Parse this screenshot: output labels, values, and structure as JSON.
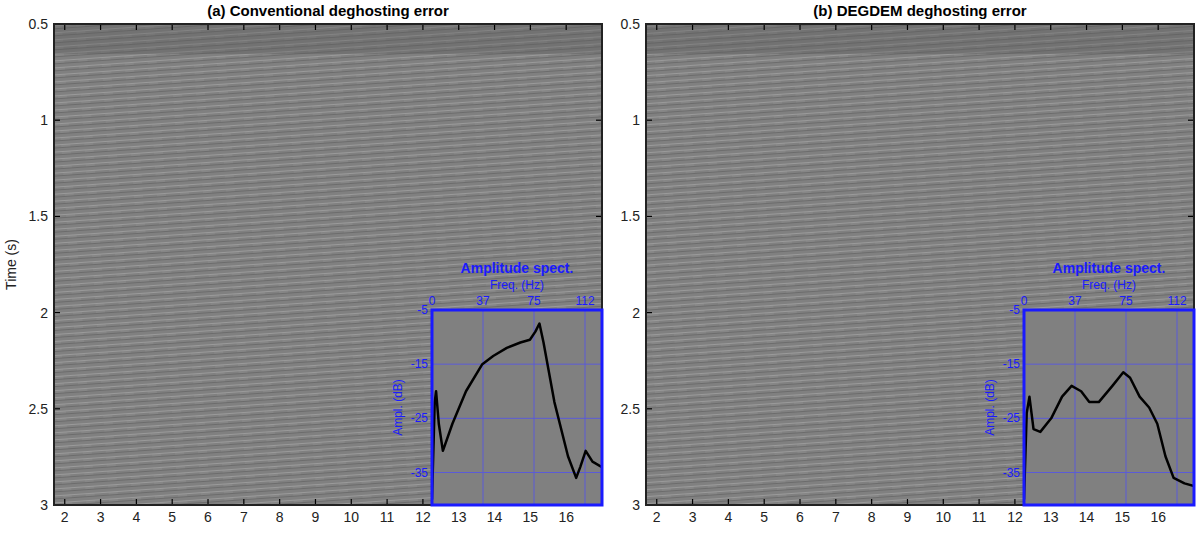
{
  "chart_data": [
    {
      "type": "image",
      "title": "(a) Conventional deghosting error",
      "ylabel": "Time (s)",
      "xlim": [
        1.7,
        17
      ],
      "ylim": [
        3,
        0.5
      ],
      "xticks": [
        2,
        3,
        4,
        5,
        6,
        7,
        8,
        9,
        10,
        11,
        12,
        13,
        14,
        15,
        16
      ],
      "yticks": [
        0.5,
        1,
        1.5,
        2,
        2.5,
        3
      ],
      "inset": {
        "type": "line",
        "title": "Amplitude spect.",
        "xlabel": "Freq. (Hz)",
        "ylabel": "Ampl. (dB)",
        "x": [
          0,
          2,
          3,
          5,
          8,
          15,
          25,
          37,
          45,
          55,
          65,
          72,
          76,
          79,
          82,
          90,
          100,
          106,
          109,
          113,
          118,
          125
        ],
        "series": [
          {
            "color": "#000000",
            "values": [
              -40,
              -22,
              -20,
              -26,
              -31,
              -26,
              -20,
              -15,
              -13.5,
              -12,
              -11,
              -10.5,
              -9,
              -7.5,
              -11,
              -22,
              -32,
              -36,
              -34,
              -31,
              -33,
              -34
            ]
          }
        ],
        "xlim": [
          0,
          125
        ],
        "ylim": [
          -41,
          -5
        ],
        "xticks": [
          0,
          {
            "value": 37.5,
            "label": "37"
          },
          75,
          {
            "value": 112.5,
            "label": "112"
          }
        ],
        "yticks": [
          -35,
          -25,
          -15,
          -5
        ],
        "grid": true
      }
    },
    {
      "type": "image",
      "title": "(b) DEGDEM deghosting error",
      "xlim": [
        1.7,
        17
      ],
      "ylim": [
        3,
        0.5
      ],
      "xticks": [
        2,
        3,
        4,
        5,
        6,
        7,
        8,
        9,
        10,
        11,
        12,
        13,
        14,
        15,
        16
      ],
      "yticks": [
        0.5,
        1,
        1.5,
        2,
        2.5,
        3
      ],
      "inset": {
        "type": "line",
        "title": "Amplitude spect.",
        "xlabel": "Freq. (Hz)",
        "ylabel": "Ampl. (dB)",
        "x": [
          0,
          2,
          4,
          7,
          12,
          20,
          28,
          35,
          42,
          48,
          55,
          65,
          73,
          78,
          85,
          92,
          98,
          104,
          110,
          118,
          125
        ],
        "series": [
          {
            "color": "#000000",
            "values": [
              -40,
              -24,
              -21,
              -27,
              -27.5,
              -25,
              -21,
              -19,
              -20,
              -22,
              -22,
              -19,
              -16.5,
              -17.5,
              -21,
              -23,
              -26,
              -32,
              -36,
              -37,
              -37.5
            ]
          }
        ],
        "xlim": [
          0,
          125
        ],
        "ylim": [
          -41,
          -5
        ],
        "xticks": [
          0,
          {
            "value": 37.5,
            "label": "37"
          },
          75,
          {
            "value": 112.5,
            "label": "112"
          }
        ],
        "yticks": [
          -35,
          -25,
          -15,
          -5
        ],
        "grid": true
      }
    }
  ]
}
